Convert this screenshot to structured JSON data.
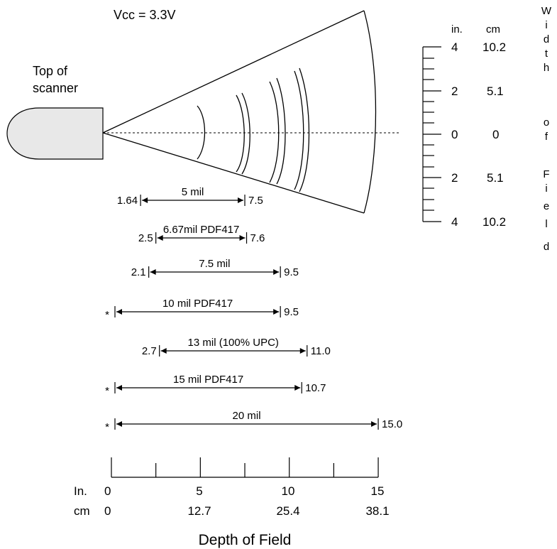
{
  "title": "Vcc = 3.3V",
  "scanner_label": [
    "Top of",
    "scanner"
  ],
  "width_axis": {
    "unit_in": "in.",
    "unit_cm": "cm",
    "ticks": [
      {
        "in": "4",
        "cm": "10.2"
      },
      {
        "in": "2",
        "cm": "5.1"
      },
      {
        "in": "0",
        "cm": "0"
      },
      {
        "in": "2",
        "cm": "5.1"
      },
      {
        "in": "4",
        "cm": "10.2"
      }
    ],
    "label_letters": [
      "W",
      "i",
      "d",
      "t",
      "h",
      "",
      "o",
      "f",
      "",
      "F",
      "i",
      "e",
      "l",
      "d"
    ]
  },
  "ranges": [
    {
      "label": "5 mil",
      "near": "1.64",
      "far": "7.5",
      "near_in": 1.64,
      "far_in": 7.5
    },
    {
      "label": "6.67mil PDF417",
      "near": "2.5",
      "far": "7.6",
      "near_in": 2.5,
      "far_in": 7.6
    },
    {
      "label": "7.5 mil",
      "near": "2.1",
      "far": "9.5",
      "near_in": 2.1,
      "far_in": 9.5
    },
    {
      "label": "10 mil PDF417",
      "near": "*",
      "far": "9.5",
      "near_in": 0,
      "far_in": 9.5
    },
    {
      "label": "13 mil (100% UPC)",
      "near": "2.7",
      "far": "11.0",
      "near_in": 2.7,
      "far_in": 11.0
    },
    {
      "label": "15 mil PDF417",
      "near": "*",
      "far": "10.7",
      "near_in": 0,
      "far_in": 10.7
    },
    {
      "label": "20 mil",
      "near": "*",
      "far": "15.0",
      "near_in": 0,
      "far_in": 15.0
    }
  ],
  "depth_axis": {
    "in_label": "In.",
    "cm_label": "cm",
    "major": [
      {
        "in": "0",
        "cm": "0"
      },
      {
        "in": "5",
        "cm": "12.7"
      },
      {
        "in": "10",
        "cm": "25.4"
      },
      {
        "in": "15",
        "cm": "38.1"
      }
    ],
    "title": "Depth of Field"
  }
}
